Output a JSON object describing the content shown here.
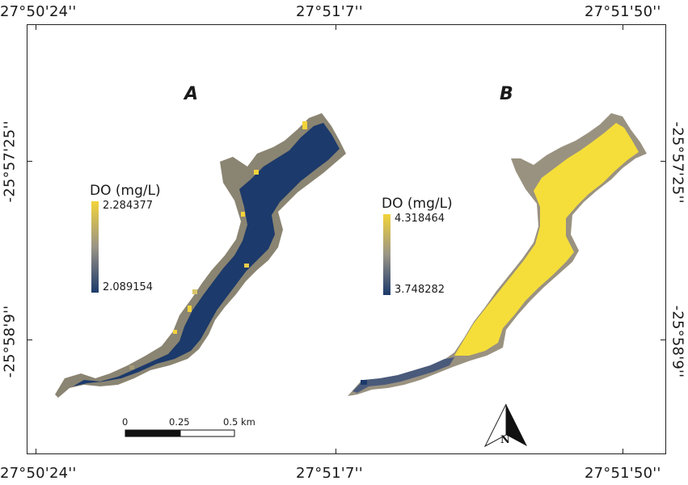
{
  "map": {
    "coords_top": [
      "27°50'24''",
      "27°51'7''",
      "27°51'50''"
    ],
    "coords_bottom": [
      "27°50'24''",
      "27°51'7''",
      "27°51'50''"
    ],
    "coords_left": [
      "-25°57'25''",
      "-25°58'9''"
    ],
    "coords_right": [
      "-25°57'25''",
      "-25°58'9''"
    ]
  },
  "panels": [
    {
      "label": "A",
      "legend_title": "DO (mg/L)",
      "legend_max": "2.284377",
      "legend_min": "2.089154",
      "fill_color": "#1c3a6b",
      "edge_color": "#8a8472",
      "highlight_color": "#f2d33a"
    },
    {
      "label": "B",
      "legend_title": "DO (mg/L)",
      "legend_max": "4.318464",
      "legend_min": "3.748282",
      "fill_color": "#f5de3a",
      "edge_color": "#9a9280",
      "tail_color": "#4a5a7a"
    }
  ],
  "scale_bar": {
    "labels": [
      "0",
      "0.25",
      "0.5 km"
    ]
  },
  "north_arrow": {
    "label": "N"
  },
  "colors": {
    "ramp_high": "#f2d33a",
    "ramp_mid": "#9a9486",
    "ramp_low": "#1c3a6b"
  }
}
